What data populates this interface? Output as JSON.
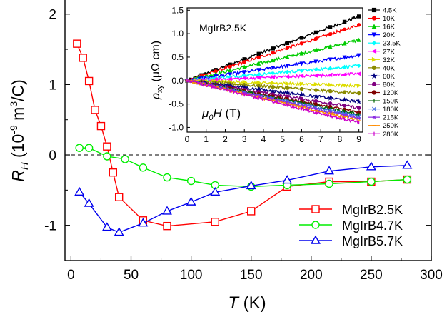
{
  "chart_data": [
    {
      "type": "line",
      "xlabel_italic": "T",
      "xlabel_unit": " (K)",
      "ylabel_main": "R",
      "ylabel_sub": "H",
      "ylabel_unit_a": " (10",
      "ylabel_exp1": "-9",
      "ylabel_unit_b": " m",
      "ylabel_exp2": "3",
      "ylabel_unit_c": "/C)",
      "xlim": [
        -5,
        300
      ],
      "ylim": [
        -1.5,
        2.2
      ],
      "xticks": [
        0,
        50,
        100,
        150,
        200,
        250,
        300
      ],
      "yticks": [
        -1,
        0,
        1,
        2
      ],
      "grid": false,
      "legend_position": "lower-right",
      "reference_line_y": 0,
      "series": [
        {
          "name": "MgIrB2.5K",
          "color": "#ff0000",
          "marker": "square",
          "x": [
            5,
            10,
            15,
            20,
            25,
            30,
            35,
            40,
            60,
            80,
            120,
            150,
            180,
            215,
            250,
            280
          ],
          "y": [
            1.58,
            1.38,
            1.05,
            0.64,
            0.41,
            0.12,
            -0.25,
            -0.6,
            -0.93,
            -1.01,
            -0.95,
            -0.8,
            -0.45,
            -0.38,
            -0.38,
            -0.35
          ]
        },
        {
          "name": "MgIrB4.7K",
          "color": "#00ee00",
          "marker": "circle",
          "x": [
            7,
            15,
            30,
            45,
            60,
            80,
            100,
            120,
            150,
            180,
            215,
            250,
            280
          ],
          "y": [
            0.1,
            0.1,
            -0.02,
            -0.06,
            -0.18,
            -0.32,
            -0.37,
            -0.43,
            -0.45,
            -0.43,
            -0.41,
            -0.38,
            -0.35
          ]
        },
        {
          "name": "MgIrB5.7K",
          "color": "#0000ee",
          "marker": "triangle",
          "x": [
            7,
            15,
            30,
            40,
            60,
            80,
            100,
            120,
            150,
            180,
            215,
            250,
            280
          ],
          "y": [
            -0.53,
            -0.69,
            -1.03,
            -1.1,
            -0.97,
            -0.8,
            -0.67,
            -0.53,
            -0.44,
            -0.36,
            -0.23,
            -0.17,
            -0.15
          ]
        }
      ]
    },
    {
      "type": "line",
      "title": "MgIrB2.5K",
      "xlabel_main": "μ",
      "xlabel_sub": "0",
      "xlabel_rest": "H",
      "xlabel_unit": " (T)",
      "ylabel_main": "ρ",
      "ylabel_sub": "xy",
      "ylabel_unit": " (μΩ cm)",
      "xlim": [
        0,
        9.2
      ],
      "ylim": [
        -1.1,
        1.55
      ],
      "xticks": [
        0,
        1,
        2,
        3,
        4,
        5,
        6,
        7,
        8,
        9
      ],
      "yticks": [
        -1.0,
        -0.5,
        0.0,
        0.5,
        1.0,
        1.5
      ],
      "ytick_labels": [
        "-1.0",
        "-0.5",
        "0.0",
        "0.5",
        "1.0",
        "1.5"
      ],
      "legend_position": "right-outside",
      "series": [
        {
          "name": "4.5K",
          "color": "#000000",
          "marker": "square",
          "slope": 0.152
        },
        {
          "name": "10K",
          "color": "#ff0000",
          "marker": "circle",
          "slope": 0.132
        },
        {
          "name": "16K",
          "color": "#00cc00",
          "marker": "triangle",
          "slope": 0.096
        },
        {
          "name": "20K",
          "color": "#0000ff",
          "marker": "triangle-down",
          "slope": 0.06
        },
        {
          "name": "23.5K",
          "color": "#00ffff",
          "marker": "diamond",
          "slope": 0.035
        },
        {
          "name": "27K",
          "color": "#ff00ff",
          "marker": "triangle-left",
          "slope": 0.016
        },
        {
          "name": "32K",
          "color": "#dddd00",
          "marker": "triangle-right",
          "slope": -0.012
        },
        {
          "name": "40K",
          "color": "#8b8b00",
          "marker": "circle",
          "slope": -0.03
        },
        {
          "name": "60K",
          "color": "#000080",
          "marker": "star",
          "slope": -0.05
        },
        {
          "name": "80K",
          "color": "#800080",
          "marker": "circle",
          "slope": -0.065
        },
        {
          "name": "120K",
          "color": "#800000",
          "marker": "circle",
          "slope": -0.075
        },
        {
          "name": "150K",
          "color": "#006400",
          "marker": "plus",
          "slope": -0.08
        },
        {
          "name": "180K",
          "color": "#4169e1",
          "marker": "cross",
          "slope": -0.085
        },
        {
          "name": "215K",
          "color": "#8a2be2",
          "marker": "asterisk",
          "slope": -0.09
        },
        {
          "name": "250K",
          "color": "#ff8c00",
          "marker": "dash",
          "slope": -0.095
        },
        {
          "name": "280K",
          "color": "#cc00cc",
          "marker": "bar",
          "slope": -0.1
        }
      ]
    }
  ]
}
